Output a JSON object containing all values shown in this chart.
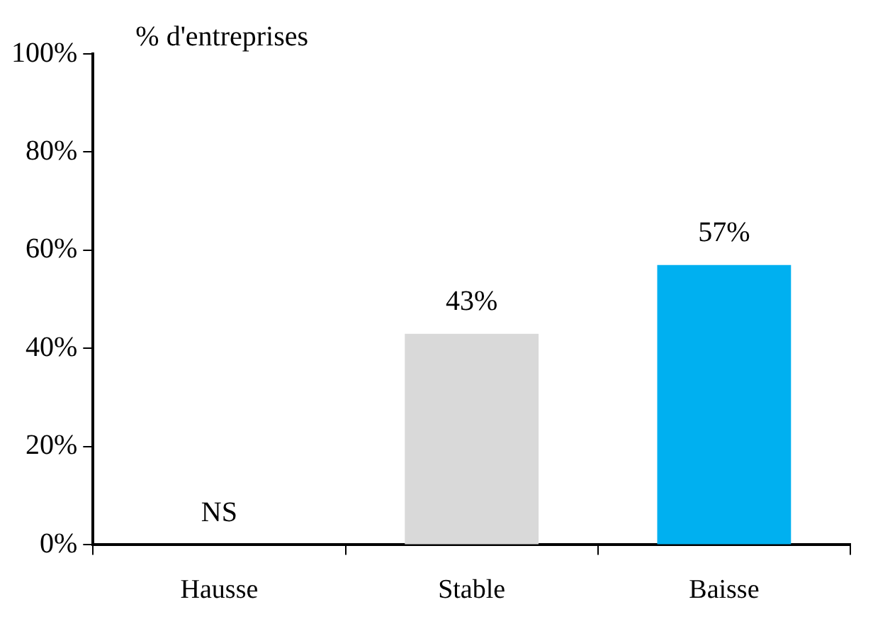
{
  "chart_data": {
    "type": "bar",
    "ylabel": "% d'entreprises",
    "categories": [
      "Hausse",
      "Stable",
      "Baisse"
    ],
    "values": [
      null,
      43,
      57
    ],
    "colors": [
      "#d9d9d9",
      "#d9d9d9",
      "#00b0f0"
    ],
    "value_labels": [
      "NS",
      "43%",
      "57%"
    ],
    "ylim": [
      0,
      100
    ],
    "yticks": [
      {
        "value": 0,
        "label": "0%"
      },
      {
        "value": 20,
        "label": "20%"
      },
      {
        "value": 40,
        "label": "40%"
      },
      {
        "value": 60,
        "label": "60%"
      },
      {
        "value": 80,
        "label": "80%"
      },
      {
        "value": 100,
        "label": "100%"
      }
    ],
    "grid": false,
    "legend": false
  }
}
